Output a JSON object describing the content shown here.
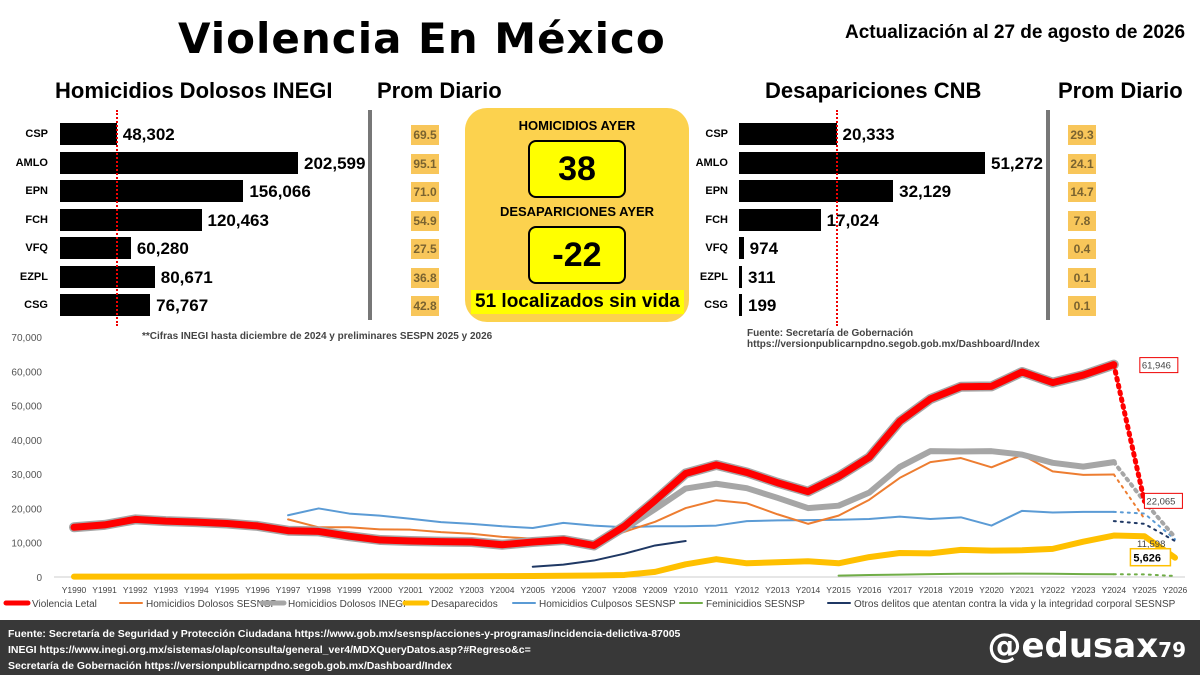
{
  "header": {
    "title": "Violencia En México",
    "update": "Actualización al 27 de agosto de 2026"
  },
  "homicidios": {
    "title": "Homicidios Dolosos INEGI",
    "avg_title": "Prom Diario",
    "items": [
      {
        "label": "CSP",
        "value": 48302,
        "value_text": "48,302",
        "avg": "69.5"
      },
      {
        "label": "AMLO",
        "value": 202599,
        "value_text": "202,599",
        "avg": "95.1"
      },
      {
        "label": "EPN",
        "value": 156066,
        "value_text": "156,066",
        "avg": "71.0"
      },
      {
        "label": "FCH",
        "value": 120463,
        "value_text": "120,463",
        "avg": "54.9"
      },
      {
        "label": "VFQ",
        "value": 60280,
        "value_text": "60,280",
        "avg": "27.5"
      },
      {
        "label": "EZPL",
        "value": 80671,
        "value_text": "80,671",
        "avg": "36.8"
      },
      {
        "label": "CSG",
        "value": 76767,
        "value_text": "76,767",
        "avg": "42.8"
      }
    ],
    "note": "**Cifras INEGI hasta diciembre de 2024 y preliminares SESPN 2025 y 2026"
  },
  "center": {
    "homicidios_label": "HOMICIDIOS AYER",
    "homicidios_value": "38",
    "desap_label": "DESAPARICIONES AYER",
    "desap_value": "-22",
    "localizados": "51 localizados sin vida"
  },
  "desapariciones": {
    "title": "Desapariciones CNB",
    "avg_title": "Prom Diario",
    "items": [
      {
        "label": "CSP",
        "value": 20333,
        "value_text": "20,333",
        "avg": "29.3"
      },
      {
        "label": "AMLO",
        "value": 51272,
        "value_text": "51,272",
        "avg": "24.1"
      },
      {
        "label": "EPN",
        "value": 32129,
        "value_text": "32,129",
        "avg": "14.7"
      },
      {
        "label": "FCH",
        "value": 17024,
        "value_text": "17,024",
        "avg": "7.8"
      },
      {
        "label": "VFQ",
        "value": 974,
        "value_text": "974",
        "avg": "0.4"
      },
      {
        "label": "EZPL",
        "value": 311,
        "value_text": "311",
        "avg": "0.1"
      },
      {
        "label": "CSG",
        "value": 199,
        "value_text": "199",
        "avg": "0.1"
      }
    ],
    "source": "Fuente: Secretaría de Gobernación https://versionpublicarnpdno.segob.gob.mx/Dashboard/Index"
  },
  "chart_data": {
    "type": "line",
    "categories": [
      "Y1990",
      "Y1991",
      "Y1992",
      "Y1993",
      "Y1994",
      "Y1995",
      "Y1996",
      "Y1997",
      "Y1998",
      "Y1999",
      "Y2000",
      "Y2001",
      "Y2002",
      "Y2003",
      "Y2004",
      "Y2005",
      "Y2006",
      "Y2007",
      "Y2008",
      "Y2009",
      "Y2010",
      "Y2011",
      "Y2012",
      "Y2013",
      "Y2014",
      "Y2015",
      "Y2016",
      "Y2017",
      "Y2018",
      "Y2019",
      "Y2020",
      "Y2021",
      "Y2022",
      "Y2023",
      "Y2024",
      "Y2025",
      "Y2026"
    ],
    "ylim": [
      0,
      70000
    ],
    "yticks": [
      "0",
      "10,000",
      "20,000",
      "30,000",
      "40,000",
      "50,000",
      "60,000",
      "70,000"
    ],
    "grid": false,
    "legend": "bottom",
    "series": [
      {
        "name": "Violencia Letal",
        "color": "#ff0000",
        "values": [
          14500,
          15200,
          16800,
          16300,
          16000,
          15600,
          14900,
          13500,
          13300,
          11900,
          10800,
          10500,
          10300,
          10200,
          9400,
          10200,
          10800,
          9200,
          14800,
          22300,
          30200,
          32700,
          30500,
          27500,
          24900,
          29300,
          34900,
          45400,
          51900,
          55500,
          55600,
          59800,
          56700,
          58900,
          61946,
          null,
          null
        ],
        "projected": [
          null,
          null,
          null,
          null,
          null,
          null,
          null,
          null,
          null,
          null,
          null,
          null,
          null,
          null,
          null,
          null,
          null,
          null,
          null,
          null,
          null,
          null,
          null,
          null,
          null,
          null,
          null,
          null,
          null,
          null,
          null,
          null,
          null,
          null,
          61946,
          22065,
          null
        ],
        "end_label": "61,946",
        "proj_label": "22,065"
      },
      {
        "name": "Homicidios Dolosos SESNSP",
        "color": "#ed7d31",
        "values": [
          null,
          null,
          null,
          null,
          null,
          null,
          null,
          16800,
          14500,
          14500,
          13900,
          13800,
          13100,
          12600,
          11700,
          11200,
          11800,
          10300,
          13200,
          16100,
          20100,
          22400,
          21500,
          18300,
          15500,
          17900,
          22500,
          28900,
          33500,
          34700,
          32000,
          35600,
          30800,
          29800,
          29900,
          null,
          null
        ],
        "projected": [
          null,
          null,
          null,
          null,
          null,
          null,
          null,
          null,
          null,
          null,
          null,
          null,
          null,
          null,
          null,
          null,
          null,
          null,
          null,
          null,
          null,
          null,
          null,
          null,
          null,
          null,
          null,
          null,
          null,
          null,
          null,
          null,
          null,
          null,
          29900,
          17000,
          null
        ]
      },
      {
        "name": "Homicidios Dolosos INEGI",
        "color": "#a6a6a6",
        "values": [
          14500,
          15100,
          16600,
          16000,
          15800,
          15700,
          14800,
          13500,
          13600,
          12200,
          10700,
          10300,
          10200,
          10100,
          9300,
          9900,
          10400,
          8900,
          14000,
          19800,
          25800,
          27200,
          25900,
          23100,
          20100,
          20800,
          24600,
          32100,
          36700,
          36600,
          36700,
          35700,
          33300,
          32200,
          33500,
          null,
          null
        ],
        "projected": [
          null,
          null,
          null,
          null,
          null,
          null,
          null,
          null,
          null,
          null,
          null,
          null,
          null,
          null,
          null,
          null,
          null,
          null,
          null,
          null,
          null,
          null,
          null,
          null,
          null,
          null,
          null,
          null,
          null,
          null,
          null,
          null,
          null,
          null,
          33500,
          22000,
          11598
        ],
        "end_label": "11,598"
      },
      {
        "name": "Desaparecidos",
        "color": "#ffc000",
        "values": [
          100,
          100,
          100,
          100,
          100,
          120,
          130,
          140,
          150,
          160,
          170,
          180,
          200,
          220,
          240,
          280,
          350,
          450,
          600,
          1500,
          3700,
          5200,
          4000,
          4300,
          4600,
          4000,
          5800,
          7000,
          6900,
          7900,
          7700,
          7800,
          8200,
          10300,
          12100,
          11900,
          5626
        ],
        "end_label": "5,626"
      },
      {
        "name": "Homicidios Culposos SESNSP",
        "color": "#5b9bd5",
        "values": [
          null,
          null,
          null,
          null,
          null,
          null,
          null,
          18000,
          20000,
          18500,
          17900,
          17000,
          16000,
          15500,
          14800,
          14300,
          15800,
          15000,
          14500,
          14800,
          14800,
          15000,
          16300,
          16500,
          16600,
          16700,
          16900,
          17600,
          16900,
          17400,
          15000,
          19300,
          18800,
          19000,
          19000,
          null,
          null
        ],
        "projected": [
          null,
          null,
          null,
          null,
          null,
          null,
          null,
          null,
          null,
          null,
          null,
          null,
          null,
          null,
          null,
          null,
          null,
          null,
          null,
          null,
          null,
          null,
          null,
          null,
          null,
          null,
          null,
          null,
          null,
          null,
          null,
          null,
          null,
          null,
          19000,
          18500,
          11000
        ]
      },
      {
        "name": "Feminicidios SESNSP",
        "color": "#70ad47",
        "values": [
          null,
          null,
          null,
          null,
          null,
          null,
          null,
          null,
          null,
          null,
          null,
          null,
          null,
          null,
          null,
          null,
          null,
          null,
          null,
          null,
          null,
          null,
          null,
          null,
          null,
          400,
          600,
          700,
          850,
          950,
          950,
          1000,
          950,
          830,
          800,
          null,
          null
        ],
        "projected": [
          null,
          null,
          null,
          null,
          null,
          null,
          null,
          null,
          null,
          null,
          null,
          null,
          null,
          null,
          null,
          null,
          null,
          null,
          null,
          null,
          null,
          null,
          null,
          null,
          null,
          null,
          null,
          null,
          null,
          null,
          null,
          null,
          null,
          null,
          800,
          750,
          300
        ]
      },
      {
        "name": "Otros delitos que atentan contra la vida y la integridad corporal SESNSP",
        "color": "#1f3864",
        "values": [
          null,
          null,
          null,
          null,
          null,
          null,
          null,
          null,
          null,
          null,
          null,
          null,
          null,
          null,
          null,
          3000,
          3600,
          4800,
          6800,
          9200,
          10500,
          null,
          null,
          null,
          null,
          null,
          null,
          null,
          null,
          null,
          null,
          null,
          null,
          null,
          null,
          null,
          null
        ],
        "xstart": 25,
        "projected": [
          null,
          null,
          null,
          null,
          null,
          null,
          null,
          null,
          null,
          null,
          null,
          null,
          null,
          null,
          null,
          null,
          null,
          null,
          null,
          null,
          null,
          null,
          null,
          null,
          null,
          null,
          null,
          null,
          null,
          null,
          null,
          null,
          null,
          null,
          16300,
          15500,
          10500
        ]
      }
    ]
  },
  "footer": {
    "line1": "Fuente: Secretaría de Seguridad y Protección Ciudadana https://www.gob.mx/sesnsp/acciones-y-programas/incidencia-delictiva-87005",
    "line2": "INEGI https://www.inegi.org.mx/sistemas/olap/consulta/general_ver4/MDXQueryDatos.asp?#Regreso&c=",
    "line3": "Secretaría de Gobernación https://versionpublicarnpdno.segob.gob.mx/Dashboard/Index",
    "handle": "@edusax",
    "handle_suffix": "79"
  }
}
